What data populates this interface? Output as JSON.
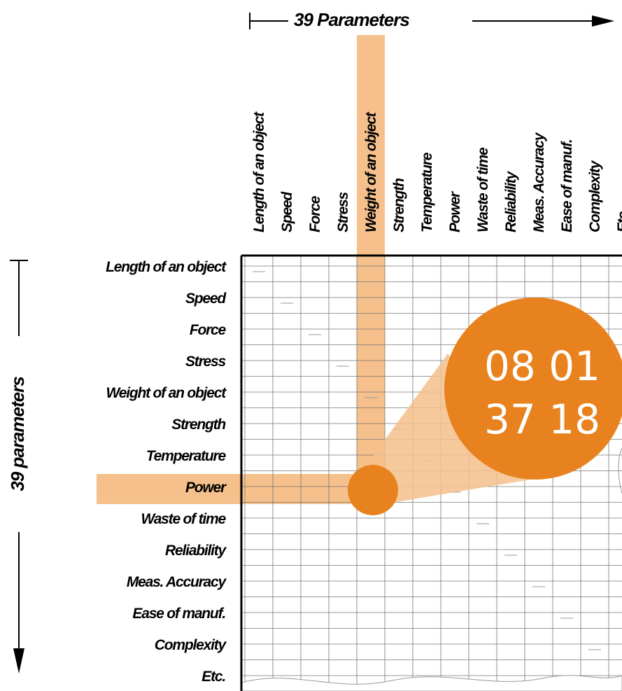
{
  "top_title": "39 Parameters",
  "side_title": "39 parameters",
  "columns": [
    "Length of an object",
    "Speed",
    "Force",
    "Stress",
    "Weight of an object",
    "Strength",
    "Temperature",
    "Power",
    "Waste of time",
    "Reliability",
    "Meas. Accuracy",
    "Ease of manuf.",
    "Complexity",
    "Etc."
  ],
  "rows": [
    "Length of an object",
    "Speed",
    "Force",
    "Stress",
    "Weight of an object",
    "Strength",
    "Temperature",
    "Power",
    "Waste of time",
    "Reliability",
    "Meas. Accuracy",
    "Ease of manuf.",
    "Complexity",
    "Etc."
  ],
  "callout": {
    "line1": "08 01",
    "line2": "37 18"
  }
}
